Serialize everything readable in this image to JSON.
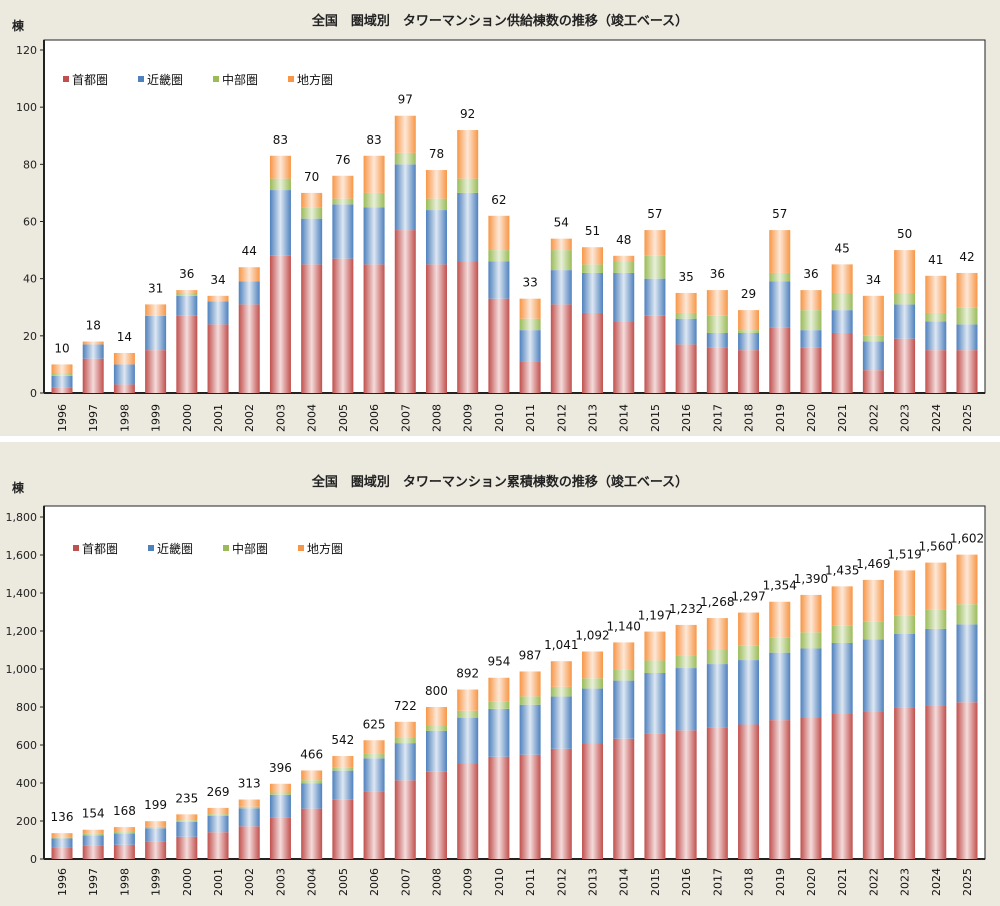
{
  "colors": {
    "首都圏": "#c0504d",
    "近畿圏": "#4f81bd",
    "中部圏": "#9bbb59",
    "地方圏": "#f79646"
  },
  "chart_data": [
    {
      "type": "bar",
      "stacked": true,
      "title": "全国　圏域別　タワーマンション供給棟数の推移（竣工ベース）",
      "ylabel": "棟",
      "xlabel": "",
      "ylim": [
        0,
        120
      ],
      "yticks": [
        "0",
        "20",
        "40",
        "60",
        "80",
        "100",
        "120"
      ],
      "legend_position": "top-left",
      "categories": [
        "1996",
        "1997",
        "1998",
        "1999",
        "2000",
        "2001",
        "2002",
        "2003",
        "2004",
        "2005",
        "2006",
        "2007",
        "2008",
        "2009",
        "2010",
        "2011",
        "2012",
        "2013",
        "2014",
        "2015",
        "2016",
        "2017",
        "2018",
        "2019",
        "2020",
        "2021",
        "2022",
        "2023",
        "2024",
        "2025"
      ],
      "totals": [
        10,
        18,
        14,
        31,
        36,
        34,
        44,
        83,
        70,
        76,
        83,
        97,
        78,
        92,
        62,
        33,
        54,
        51,
        48,
        57,
        35,
        36,
        29,
        57,
        36,
        45,
        34,
        50,
        41,
        42
      ],
      "total_labels": [
        "10",
        "18",
        "14",
        "31",
        "36",
        "34",
        "44",
        "83",
        "70",
        "76",
        "83",
        "97",
        "78",
        "92",
        "62",
        "33",
        "54",
        "51",
        "48",
        "57",
        "35",
        "36",
        "29",
        "57",
        "36",
        "45",
        "34",
        "50",
        "41",
        "42"
      ],
      "series": [
        {
          "name": "首都圏",
          "values": [
            2,
            12,
            3,
            15,
            27,
            24,
            31,
            48,
            45,
            47,
            45,
            57,
            45,
            46,
            33,
            11,
            31,
            28,
            25,
            27,
            17,
            16,
            15,
            23,
            16,
            21,
            8,
            19,
            15,
            15
          ]
        },
        {
          "name": "近畿圏",
          "values": [
            4,
            5,
            7,
            12,
            7,
            8,
            8,
            23,
            16,
            19,
            20,
            23,
            19,
            24,
            13,
            11,
            12,
            14,
            17,
            13,
            9,
            5,
            6,
            16,
            6,
            8,
            10,
            12,
            10,
            9
          ]
        },
        {
          "name": "中部圏",
          "values": [
            1,
            0,
            0,
            0,
            1,
            0,
            0,
            4,
            4,
            2,
            5,
            4,
            4,
            5,
            4,
            4,
            7,
            3,
            4,
            8,
            2,
            6,
            1,
            3,
            7,
            6,
            2,
            4,
            3,
            6
          ]
        },
        {
          "name": "地方圏",
          "values": [
            3,
            1,
            4,
            4,
            1,
            2,
            5,
            8,
            5,
            8,
            13,
            13,
            10,
            17,
            12,
            7,
            4,
            6,
            2,
            9,
            7,
            9,
            7,
            15,
            7,
            10,
            14,
            15,
            13,
            12
          ]
        }
      ]
    },
    {
      "type": "bar",
      "stacked": true,
      "title": "全国　圏域別　タワーマンション累積棟数の推移（竣工ベース）",
      "ylabel": "棟",
      "xlabel": "",
      "ylim": [
        0,
        1800
      ],
      "yticks": [
        "0",
        "200",
        "400",
        "600",
        "800",
        "1,000",
        "1,200",
        "1,400",
        "1,600",
        "1,800"
      ],
      "legend_position": "top-left",
      "categories": [
        "1996",
        "1997",
        "1998",
        "1999",
        "2000",
        "2001",
        "2002",
        "2003",
        "2004",
        "2005",
        "2006",
        "2007",
        "2008",
        "2009",
        "2010",
        "2011",
        "2012",
        "2013",
        "2014",
        "2015",
        "2016",
        "2017",
        "2018",
        "2019",
        "2020",
        "2021",
        "2022",
        "2023",
        "2024",
        "2025"
      ],
      "totals": [
        136,
        154,
        168,
        199,
        235,
        269,
        313,
        396,
        466,
        542,
        625,
        722,
        800,
        892,
        954,
        987,
        1041,
        1092,
        1140,
        1197,
        1232,
        1268,
        1297,
        1354,
        1390,
        1435,
        1469,
        1519,
        1560,
        1602
      ],
      "total_labels": [
        "136",
        "154",
        "168",
        "199",
        "235",
        "269",
        "313",
        "396",
        "466",
        "542",
        "625",
        "722",
        "800",
        "892",
        "954",
        "987",
        "1,041",
        "1,092",
        "1,140",
        "1,197",
        "1,232",
        "1,268",
        "1,297",
        "1,354",
        "1,390",
        "1,435",
        "1,469",
        "1,519",
        "1,560",
        "1,602"
      ],
      "series": [
        {
          "name": "首都圏",
          "values": [
            60,
            72,
            75,
            90,
            117,
            141,
            172,
            220,
            265,
            312,
            357,
            414,
            459,
            505,
            538,
            549,
            580,
            608,
            633,
            660,
            677,
            693,
            708,
            731,
            747,
            768,
            776,
            795,
            810,
            825
          ]
        },
        {
          "name": "近畿圏",
          "values": [
            48,
            53,
            60,
            72,
            79,
            87,
            95,
            118,
            134,
            153,
            173,
            196,
            215,
            239,
            252,
            263,
            275,
            289,
            306,
            319,
            328,
            333,
            339,
            355,
            361,
            369,
            379,
            391,
            401,
            410
          ]
        },
        {
          "name": "中部圏",
          "values": [
            7,
            7,
            7,
            7,
            8,
            8,
            8,
            12,
            16,
            18,
            23,
            27,
            31,
            36,
            40,
            44,
            51,
            54,
            58,
            66,
            68,
            74,
            75,
            78,
            85,
            91,
            93,
            97,
            100,
            106
          ]
        },
        {
          "name": "地方圏",
          "values": [
            21,
            22,
            26,
            30,
            31,
            33,
            38,
            46,
            51,
            59,
            72,
            85,
            95,
            112,
            124,
            131,
            135,
            141,
            143,
            152,
            159,
            168,
            175,
            190,
            197,
            207,
            221,
            236,
            249,
            261
          ]
        }
      ]
    }
  ]
}
